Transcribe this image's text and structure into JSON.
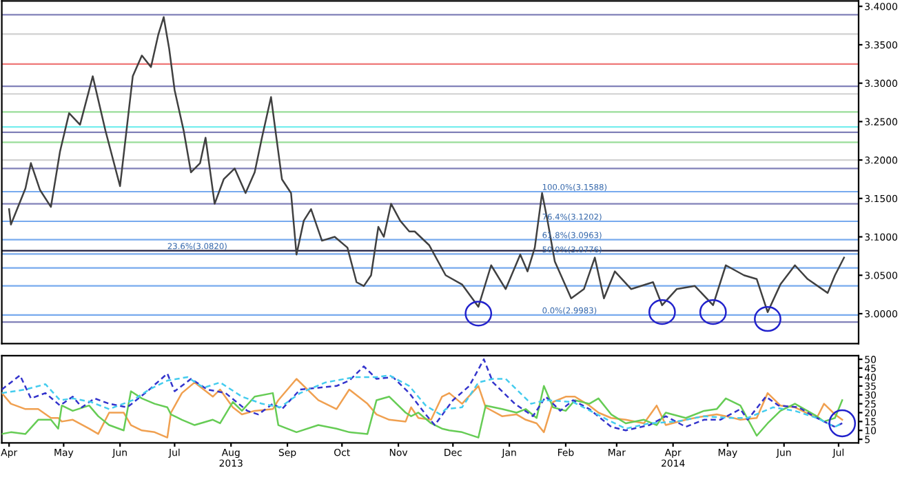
{
  "chart_data": [
    {
      "type": "line",
      "xlim": [
        "2013-03-28",
        "2014-07-12"
      ],
      "ylim": [
        2.961,
        3.407
      ],
      "tick_labels": "y",
      "line_style": "solid",
      "marker": "none",
      "yticks": [
        {
          "value": 3.0,
          "label": "3.0000"
        },
        {
          "value": 3.05,
          "label": "3.0500"
        },
        {
          "value": 3.1,
          "label": "3.1000"
        },
        {
          "value": 3.15,
          "label": "3.1500"
        },
        {
          "value": 3.2,
          "label": "3.2000"
        },
        {
          "value": 3.25,
          "label": "3.2500"
        },
        {
          "value": 3.3,
          "label": "3.3000"
        },
        {
          "value": 3.35,
          "label": "3.3500"
        },
        {
          "value": 3.4,
          "label": "3.4000"
        }
      ],
      "series": [
        {
          "color": "#404040",
          "x": [
            "2013-04-01",
            "2013-04-02",
            "2013-04-10",
            "2013-04-13",
            "2013-04-18",
            "2013-04-24",
            "2013-04-29",
            "2013-05-04",
            "2013-05-10",
            "2013-05-17",
            "2013-05-24",
            "2013-06-01",
            "2013-06-08",
            "2013-06-13",
            "2013-06-18",
            "2013-06-22",
            "2013-06-25",
            "2013-06-28",
            "2013-07-01",
            "2013-07-06",
            "2013-07-10",
            "2013-07-15",
            "2013-07-18",
            "2013-07-23",
            "2013-07-28",
            "2013-08-03",
            "2013-08-09",
            "2013-08-14",
            "2013-08-18",
            "2013-08-23",
            "2013-08-25",
            "2013-08-29",
            "2013-09-03",
            "2013-09-06",
            "2013-09-10",
            "2013-09-14",
            "2013-09-20",
            "2013-09-27",
            "2013-10-04",
            "2013-10-09",
            "2013-10-13",
            "2013-10-17",
            "2013-10-21",
            "2013-10-24",
            "2013-10-28",
            "2013-11-02",
            "2013-11-07",
            "2013-11-10",
            "2013-11-18",
            "2013-11-27",
            "2013-12-06",
            "2013-12-15",
            "2013-12-22",
            "2013-12-30",
            "2014-01-07",
            "2014-01-11",
            "2014-01-15",
            "2014-01-19",
            "2014-01-22",
            "2014-01-26",
            "2014-02-04",
            "2014-02-11",
            "2014-02-17",
            "2014-02-22",
            "2014-02-28",
            "2014-03-09",
            "2014-03-21",
            "2014-03-26",
            "2014-04-03",
            "2014-04-13",
            "2014-04-23",
            "2014-04-30",
            "2014-05-10",
            "2014-05-17",
            "2014-05-23",
            "2014-05-30",
            "2014-06-07",
            "2014-06-14",
            "2014-06-25",
            "2014-06-29",
            "2014-07-04"
          ],
          "values": [
            3.136,
            3.116,
            3.163,
            3.196,
            3.161,
            3.139,
            3.211,
            3.261,
            3.246,
            3.309,
            3.238,
            3.166,
            3.309,
            3.336,
            3.321,
            3.363,
            3.386,
            3.345,
            3.291,
            3.238,
            3.184,
            3.196,
            3.229,
            3.143,
            3.175,
            3.189,
            3.157,
            3.184,
            3.229,
            3.282,
            3.246,
            3.175,
            3.157,
            3.077,
            3.121,
            3.136,
            3.095,
            3.1,
            3.086,
            3.041,
            3.036,
            3.05,
            3.113,
            3.1,
            3.143,
            3.121,
            3.107,
            3.107,
            3.089,
            3.05,
            3.038,
            3.009,
            3.063,
            3.032,
            3.077,
            3.055,
            3.086,
            3.157,
            3.121,
            3.068,
            3.02,
            3.032,
            3.073,
            3.02,
            3.055,
            3.032,
            3.041,
            3.011,
            3.032,
            3.036,
            3.011,
            3.063,
            3.05,
            3.045,
            3.002,
            3.038,
            3.063,
            3.045,
            3.027,
            3.05,
            3.073
          ]
        }
      ],
      "ref_lines": [
        {
          "axis": "y",
          "value": 3.389,
          "color": "#8080b8"
        },
        {
          "axis": "y",
          "value": 3.296,
          "color": "#8080b8"
        },
        {
          "axis": "y",
          "value": 3.236,
          "color": "#8080b8"
        },
        {
          "axis": "y",
          "value": 3.189,
          "color": "#8080b8"
        },
        {
          "axis": "y",
          "value": 3.143,
          "color": "#8080b8"
        },
        {
          "axis": "y",
          "value": 2.989,
          "color": "#8080b8"
        },
        {
          "axis": "y",
          "value": 3.082,
          "color": "#202040"
        },
        {
          "axis": "y",
          "value": 3.364,
          "color": "#d0d0d0"
        },
        {
          "axis": "y",
          "value": 3.325,
          "color": "#ee7777"
        },
        {
          "axis": "y",
          "value": 3.286,
          "color": "#d0d0d0"
        },
        {
          "axis": "y",
          "value": 3.2625,
          "color": "#99dd99"
        },
        {
          "axis": "y",
          "value": 3.243,
          "color": "#77eeee"
        },
        {
          "axis": "y",
          "value": 3.223,
          "color": "#99dd99"
        },
        {
          "axis": "y",
          "value": 3.2,
          "color": "#d0d0d0"
        },
        {
          "axis": "y",
          "value": 3.1588,
          "color": "#77aaee"
        },
        {
          "axis": "y",
          "value": 3.1202,
          "color": "#77aaee"
        },
        {
          "axis": "y",
          "value": 3.0963,
          "color": "#77aaee"
        },
        {
          "axis": "y",
          "value": 3.0776,
          "color": "#77aaee"
        },
        {
          "axis": "y",
          "value": 3.0596,
          "color": "#77aaee"
        },
        {
          "axis": "y",
          "value": 3.0362,
          "color": "#77aaee"
        },
        {
          "axis": "y",
          "value": 2.9983,
          "color": "#77aaee"
        }
      ],
      "annotations": [
        {
          "text": "23.6%(3.0820)",
          "x": "2013-06-27",
          "y": 3.082
        },
        {
          "text": "100.0%(3.1588)",
          "x": "2014-01-19",
          "y": 3.1588
        },
        {
          "text": "76.4%(3.1202)",
          "x": "2014-01-19",
          "y": 3.1202
        },
        {
          "text": "61.8%(3.0963)",
          "x": "2014-01-19",
          "y": 3.0963
        },
        {
          "text": "50.0%(3.0776)",
          "x": "2014-01-19",
          "y": 3.0776
        },
        {
          "text": "0.0%(2.9983)",
          "x": "2014-01-19",
          "y": 2.9983
        }
      ]
    },
    {
      "type": "line",
      "xlim": [
        "2013-03-28",
        "2014-07-12"
      ],
      "ylim": [
        3,
        52
      ],
      "marker": "none",
      "yticks": [
        5,
        10,
        15,
        20,
        25,
        30,
        35,
        40,
        45,
        50
      ],
      "xticks": [
        {
          "value": "2013-04-01",
          "label": "Apr"
        },
        {
          "value": "2013-05-01",
          "label": "May"
        },
        {
          "value": "2013-06-01",
          "label": "Jun"
        },
        {
          "value": "2013-07-01",
          "label": "Jul"
        },
        {
          "value": "2013-08-01",
          "label": "Aug\n2013"
        },
        {
          "value": "2013-09-01",
          "label": "Sep"
        },
        {
          "value": "2013-10-01",
          "label": "Oct"
        },
        {
          "value": "2013-11-01",
          "label": "Nov"
        },
        {
          "value": "2013-12-01",
          "label": "Dec"
        },
        {
          "value": "2014-01-01",
          "label": "Jan"
        },
        {
          "value": "2014-02-01",
          "label": "Feb"
        },
        {
          "value": "2014-03-01",
          "label": "Mar"
        },
        {
          "value": "2014-04-01",
          "label": "Apr\n2014"
        },
        {
          "value": "2014-05-01",
          "label": "May"
        },
        {
          "value": "2014-06-01",
          "label": "Jun"
        },
        {
          "value": "2014-07-01",
          "label": "Jul"
        }
      ],
      "series": [
        {
          "type": "line",
          "color": "#f0a050",
          "x": [
            "2013-03-28",
            "2013-04-02",
            "2013-04-10",
            "2013-04-17",
            "2013-04-24",
            "2013-04-28",
            "2013-04-30",
            "2013-05-06",
            "2013-05-15",
            "2013-05-20",
            "2013-05-26",
            "2013-06-03",
            "2013-06-07",
            "2013-06-13",
            "2013-06-20",
            "2013-06-27",
            "2013-06-29",
            "2013-07-05",
            "2013-07-12",
            "2013-07-22",
            "2013-07-26",
            "2013-08-02",
            "2013-08-07",
            "2013-08-14",
            "2013-08-24",
            "2013-08-27",
            "2013-09-06",
            "2013-09-18",
            "2013-09-28",
            "2013-10-05",
            "2013-10-15",
            "2013-10-20",
            "2013-10-27",
            "2013-11-05",
            "2013-11-08",
            "2013-11-12",
            "2013-11-19",
            "2013-11-25",
            "2013-11-29",
            "2013-12-06",
            "2013-12-15",
            "2013-12-19",
            "2013-12-28",
            "2014-01-05",
            "2014-01-10",
            "2014-01-16",
            "2014-01-20",
            "2014-01-25",
            "2014-02-01",
            "2014-02-06",
            "2014-02-14",
            "2014-02-19",
            "2014-02-26",
            "2014-03-06",
            "2014-03-16",
            "2014-03-23",
            "2014-03-28",
            "2014-04-08",
            "2014-04-18",
            "2014-04-25",
            "2014-04-30",
            "2014-05-08",
            "2014-05-17",
            "2014-05-23",
            "2014-05-30",
            "2014-06-07",
            "2014-06-19",
            "2014-06-23",
            "2014-06-29",
            "2014-07-03"
          ],
          "values": [
            31,
            25,
            22,
            22,
            17,
            17,
            15,
            16,
            11,
            8,
            20,
            20,
            13,
            10,
            9,
            6,
            20,
            31,
            37,
            29,
            33,
            23,
            19,
            21,
            22,
            27,
            39,
            27,
            22,
            33,
            25,
            19,
            16,
            15,
            23,
            17,
            16,
            29,
            31,
            25,
            35,
            23,
            18,
            19,
            16,
            14,
            9,
            26,
            29,
            29,
            24,
            20,
            17,
            16,
            14,
            24,
            13,
            16,
            18,
            19,
            18,
            16,
            17,
            31,
            24,
            23,
            17,
            25,
            19,
            16
          ]
        },
        {
          "type": "line",
          "color": "#66cc55",
          "x": [
            "2013-03-28",
            "2013-04-02",
            "2013-04-10",
            "2013-04-17",
            "2013-04-24",
            "2013-04-28",
            "2013-04-30",
            "2013-05-06",
            "2013-05-15",
            "2013-05-20",
            "2013-05-26",
            "2013-06-03",
            "2013-06-07",
            "2013-06-13",
            "2013-06-20",
            "2013-06-27",
            "2013-06-29",
            "2013-07-05",
            "2013-07-12",
            "2013-07-22",
            "2013-07-26",
            "2013-08-02",
            "2013-08-07",
            "2013-08-14",
            "2013-08-24",
            "2013-08-27",
            "2013-09-06",
            "2013-09-18",
            "2013-09-28",
            "2013-10-05",
            "2013-10-15",
            "2013-10-20",
            "2013-10-27",
            "2013-11-05",
            "2013-11-08",
            "2013-11-12",
            "2013-11-19",
            "2013-11-25",
            "2013-11-29",
            "2013-12-06",
            "2013-12-15",
            "2013-12-19",
            "2013-12-28",
            "2014-01-05",
            "2014-01-10",
            "2014-01-16",
            "2014-01-20",
            "2014-01-25",
            "2014-02-01",
            "2014-02-06",
            "2014-02-14",
            "2014-02-19",
            "2014-02-26",
            "2014-03-06",
            "2014-03-16",
            "2014-03-23",
            "2014-03-28",
            "2014-04-08",
            "2014-04-18",
            "2014-04-25",
            "2014-04-30",
            "2014-05-08",
            "2014-05-17",
            "2014-05-23",
            "2014-05-30",
            "2014-06-07",
            "2014-06-19",
            "2014-06-23",
            "2014-06-29",
            "2014-07-03"
          ],
          "values": [
            8,
            9,
            8,
            16,
            16,
            11,
            24,
            21,
            24,
            18,
            13,
            10,
            32,
            28,
            25,
            23,
            19,
            16,
            13,
            16,
            14,
            26,
            21,
            29,
            31,
            13,
            9,
            13,
            11,
            9,
            8,
            27,
            29,
            20,
            18,
            20,
            14,
            11,
            10,
            9,
            6,
            24,
            22,
            20,
            22,
            17,
            35,
            23,
            21,
            27,
            25,
            28,
            19,
            14,
            16,
            13,
            20,
            17,
            21,
            22,
            28,
            24,
            7,
            14,
            21,
            25,
            18,
            15,
            17,
            27
          ]
        },
        {
          "type": "line",
          "line_style": "dashed",
          "color": "#3333cc",
          "x": [
            "2013-03-28",
            "2013-04-07",
            "2013-04-13",
            "2013-04-21",
            "2013-04-29",
            "2013-05-06",
            "2013-05-11",
            "2013-05-18",
            "2013-05-26",
            "2013-06-05",
            "2013-06-16",
            "2013-06-27",
            "2013-07-01",
            "2013-07-10",
            "2013-07-19",
            "2013-07-29",
            "2013-08-10",
            "2013-08-16",
            "2013-08-24",
            "2013-08-29",
            "2013-09-08",
            "2013-09-18",
            "2013-09-28",
            "2013-10-05",
            "2013-10-13",
            "2013-10-20",
            "2013-10-29",
            "2013-11-07",
            "2013-11-16",
            "2013-11-21",
            "2013-12-01",
            "2013-12-10",
            "2013-12-18",
            "2013-12-23",
            "2014-01-04",
            "2014-01-14",
            "2014-01-21",
            "2014-01-29",
            "2014-02-05",
            "2014-02-14",
            "2014-02-26",
            "2014-03-06",
            "2014-03-19",
            "2014-03-28",
            "2014-04-08",
            "2014-04-18",
            "2014-04-27",
            "2014-05-08",
            "2014-05-12",
            "2014-05-22",
            "2014-05-29",
            "2014-06-09",
            "2014-06-19",
            "2014-06-29",
            "2014-07-03"
          ],
          "values": [
            33,
            41,
            28,
            31,
            24,
            29,
            23,
            28,
            25,
            23,
            32,
            42,
            32,
            39,
            33,
            31,
            21,
            19,
            25,
            22,
            33,
            34,
            35,
            38,
            46,
            39,
            40,
            31,
            19,
            13,
            27,
            35,
            50,
            37,
            25,
            18,
            29,
            21,
            27,
            22,
            12,
            10,
            13,
            18,
            12,
            16,
            16,
            22,
            16,
            29,
            24,
            23,
            17,
            12,
            14
          ]
        },
        {
          "type": "line",
          "line_style": "dashed",
          "color": "#44ccee",
          "x": [
            "2013-03-28",
            "2013-04-10",
            "2013-04-21",
            "2013-04-29",
            "2013-05-06",
            "2013-05-16",
            "2013-05-26",
            "2013-06-08",
            "2013-06-17",
            "2013-06-27",
            "2013-07-08",
            "2013-07-17",
            "2013-07-26",
            "2013-08-07",
            "2013-08-18",
            "2013-08-28",
            "2013-09-08",
            "2013-09-22",
            "2013-10-08",
            "2013-10-20",
            "2013-10-27",
            "2013-11-07",
            "2013-11-16",
            "2013-11-24",
            "2013-11-27",
            "2013-12-06",
            "2013-12-15",
            "2013-12-23",
            "2013-12-30",
            "2014-01-13",
            "2014-01-21",
            "2014-02-05",
            "2014-02-24",
            "2014-03-06",
            "2014-03-19",
            "2014-04-03",
            "2014-04-18",
            "2014-05-02",
            "2014-05-12",
            "2014-05-26",
            "2014-06-07",
            "2014-06-19",
            "2014-06-29",
            "2014-07-03"
          ],
          "values": [
            31,
            33,
            36,
            27,
            28,
            26,
            22,
            27,
            33,
            38,
            40,
            34,
            37,
            29,
            25,
            23,
            31,
            37,
            40,
            40,
            41,
            35,
            24,
            19,
            22,
            23,
            37,
            39,
            39,
            25,
            27,
            26,
            16,
            11,
            14,
            15,
            18,
            17,
            17,
            23,
            21,
            17,
            12,
            14
          ]
        }
      ]
    }
  ]
}
